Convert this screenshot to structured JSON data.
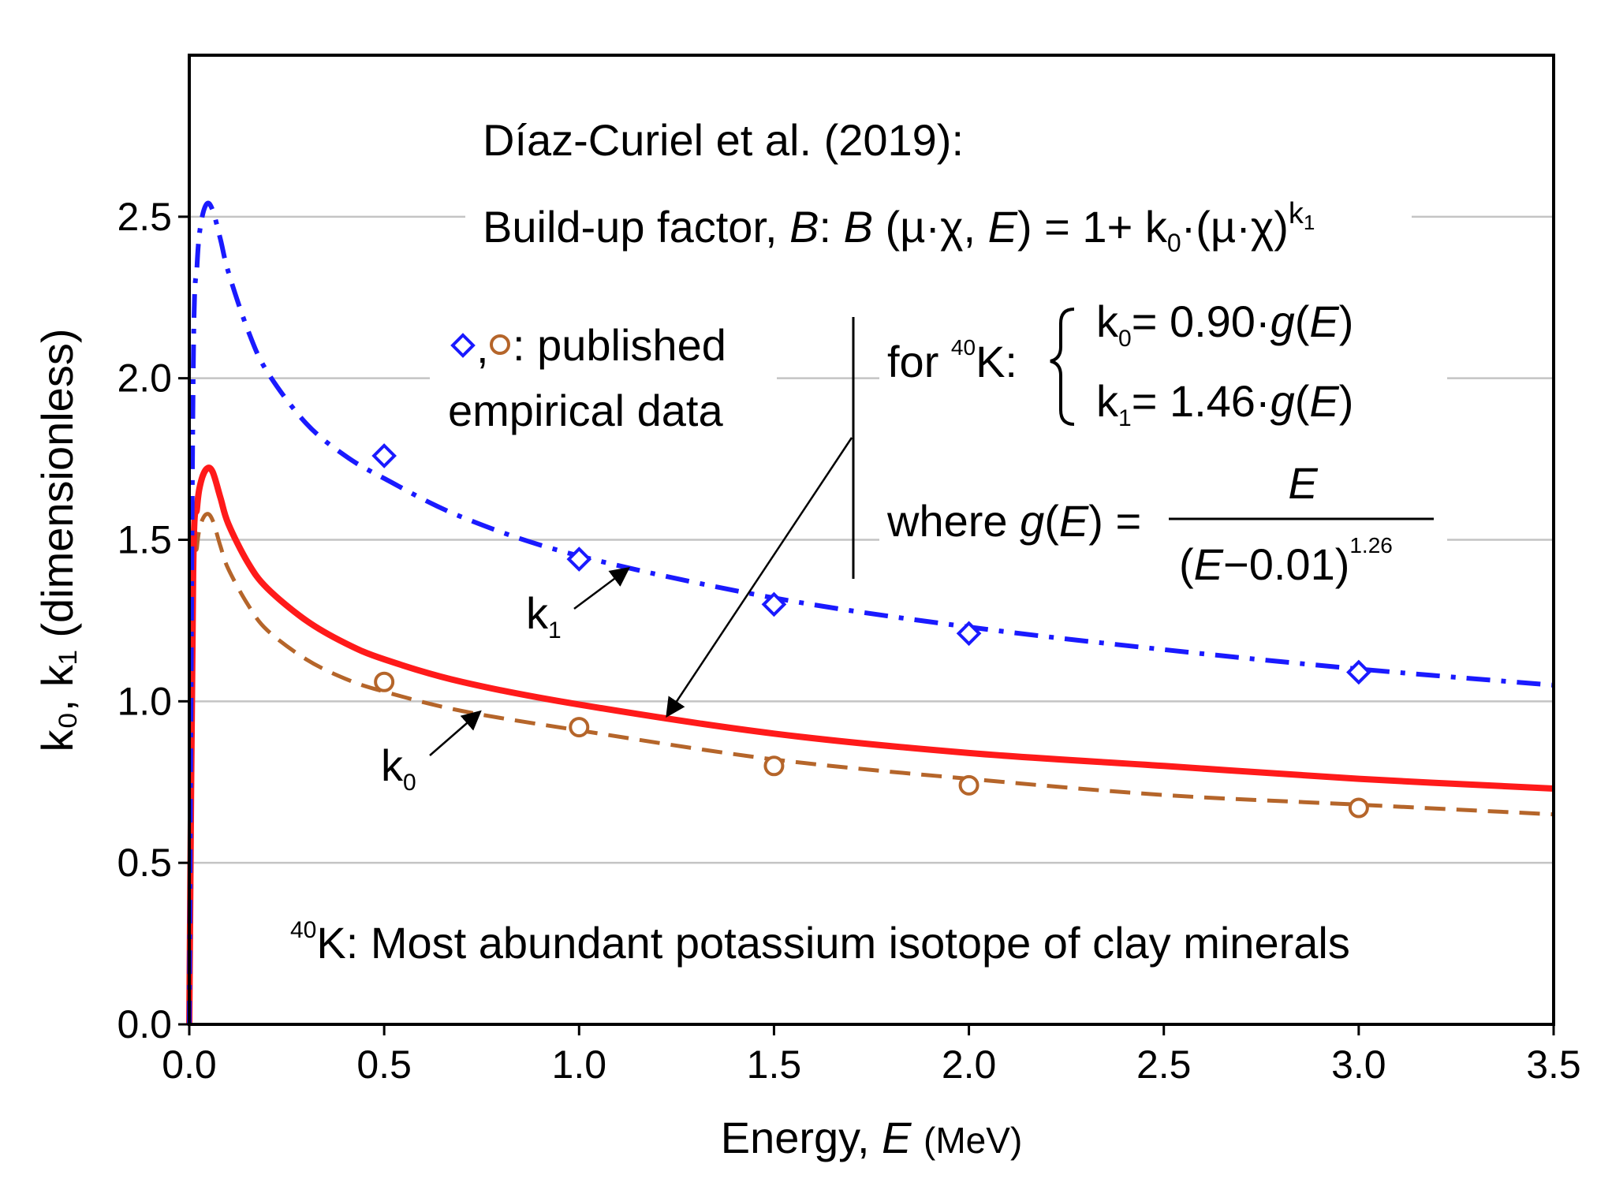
{
  "chart_data": {
    "type": "line",
    "xlabel": "Energy, ",
    "xlabel_var": "E",
    "xlabel_unit": "(MeV)",
    "ylabel": "k₀, k₁ (dimensionless)",
    "xlim": [
      0,
      3.5
    ],
    "ylim": [
      0,
      3.0
    ],
    "xticks": [
      "0.0",
      "0.5",
      "1.0",
      "1.5",
      "2.0",
      "2.5",
      "3.0",
      "3.5"
    ],
    "yticks": [
      "0.0",
      "0.5",
      "1.0",
      "1.5",
      "2.0",
      "2.5"
    ],
    "grid": "horizontal",
    "series": [
      {
        "name": "k1",
        "label": "k",
        "subscript": "1",
        "style": "dash-dot",
        "color": "#1a1aff",
        "x": [
          0.0,
          0.01,
          0.02,
          0.03,
          0.045,
          0.06,
          0.08,
          0.1,
          0.15,
          0.2,
          0.3,
          0.4,
          0.5,
          0.7,
          1.0,
          1.5,
          2.0,
          2.5,
          3.0,
          3.5
        ],
        "values": [
          0.0,
          2.0,
          2.35,
          2.48,
          2.54,
          2.52,
          2.43,
          2.33,
          2.15,
          2.02,
          1.86,
          1.76,
          1.69,
          1.57,
          1.45,
          1.32,
          1.23,
          1.16,
          1.1,
          1.05
        ]
      },
      {
        "name": "k0 (Díaz-Curiel et al. 2019)",
        "label": "",
        "style": "solid",
        "color": "#ff1a1a",
        "x": [
          0.0,
          0.01,
          0.02,
          0.03,
          0.045,
          0.06,
          0.08,
          0.1,
          0.15,
          0.2,
          0.3,
          0.4,
          0.5,
          0.7,
          1.0,
          1.5,
          2.0,
          2.5,
          3.0,
          3.5
        ],
        "values": [
          0.0,
          1.4,
          1.6,
          1.68,
          1.72,
          1.71,
          1.63,
          1.55,
          1.43,
          1.35,
          1.25,
          1.18,
          1.13,
          1.06,
          0.99,
          0.9,
          0.84,
          0.8,
          0.76,
          0.73
        ]
      },
      {
        "name": "k0",
        "label": "k",
        "subscript": "0",
        "style": "dashed",
        "color": "#b5652a",
        "x": [
          0.0,
          0.01,
          0.02,
          0.03,
          0.045,
          0.06,
          0.08,
          0.1,
          0.15,
          0.2,
          0.3,
          0.4,
          0.5,
          0.7,
          1.0,
          1.5,
          2.0,
          2.5,
          3.0,
          3.5
        ],
        "values": [
          0.0,
          1.3,
          1.48,
          1.55,
          1.58,
          1.56,
          1.48,
          1.41,
          1.3,
          1.22,
          1.13,
          1.07,
          1.03,
          0.97,
          0.91,
          0.82,
          0.76,
          0.71,
          0.68,
          0.65
        ]
      }
    ],
    "markers": [
      {
        "series": "k1",
        "shape": "diamond",
        "color": "#1a1aff",
        "x": [
          0.5,
          1.0,
          1.5,
          2.0,
          3.0
        ],
        "values": [
          1.76,
          1.44,
          1.3,
          1.21,
          1.09
        ]
      },
      {
        "series": "k0",
        "shape": "circle",
        "color": "#b5652a",
        "x": [
          0.5,
          1.0,
          1.5,
          2.0,
          3.0
        ],
        "values": [
          1.06,
          0.92,
          0.8,
          0.74,
          0.67
        ]
      }
    ],
    "annotations": {
      "title": "Díaz-Curiel et al. (2019):",
      "buildup_label": "Build-up factor, ",
      "buildup_var": "B",
      "buildup_formula_lhs": "B",
      "buildup_formula_args": " (µ·χ, ",
      "buildup_formula_E": "E",
      "buildup_formula_rhs": ") = 1+ k",
      "buildup_formula_sub0": "0",
      "buildup_formula_mid": "·(µ·χ)",
      "buildup_formula_sup": "k",
      "buildup_formula_sup_sub": "1",
      "marker_legend_sep": ",",
      "marker_legend_text": ": published",
      "marker_legend_text2": "empirical data",
      "for_label": "for ",
      "isotope_mass": "40",
      "isotope_symbol": "K:",
      "eq1_k": "k",
      "eq1_sub": "0",
      "eq1_rhs": "= 0.90·",
      "eq_g": "g",
      "eq_paren_open": "(",
      "eq_E": "E",
      "eq_paren_close": ")",
      "eq2_k": "k",
      "eq2_sub": "1",
      "eq2_rhs": "= 1.46·",
      "where_label": "where ",
      "where_eq": " = ",
      "frac_num": "E",
      "frac_den_open": "(",
      "frac_den_E": "E",
      "frac_den_rest": "−0.01)",
      "frac_den_exp": "1.26",
      "footnote_mass": "40",
      "footnote_text": "K: Most abundant potassium isotope of clay minerals"
    }
  }
}
